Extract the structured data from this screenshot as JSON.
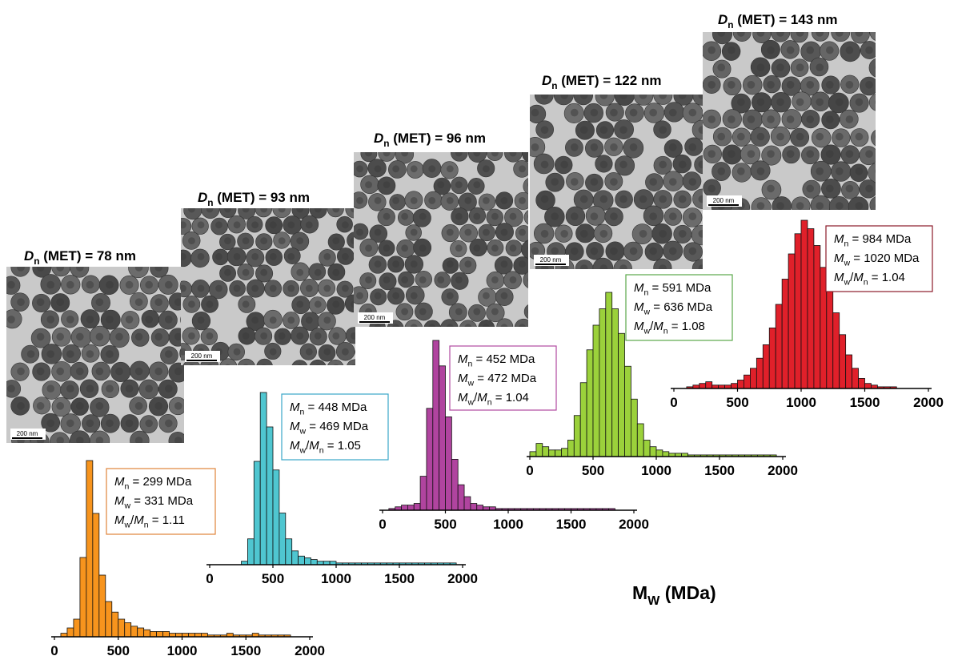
{
  "chart_data": [
    {
      "type": "histogram",
      "color": "#f7941d",
      "box_color": "#e0843a",
      "image_title": [
        {
          "t": "D",
          "s": "i"
        },
        {
          "t": "n",
          "s": "sub"
        },
        {
          "t": " (MET) = 78 nm"
        }
      ],
      "scale_bar": "200 nm",
      "stats": [
        [
          {
            "t": "M",
            "s": "i"
          },
          {
            "t": "n",
            "s": "sub"
          },
          {
            "t": " = 299 MDa"
          }
        ],
        [
          {
            "t": "M",
            "s": "i"
          },
          {
            "t": "w",
            "s": "sub"
          },
          {
            "t": " = 331 MDa"
          }
        ],
        [
          {
            "t": "M",
            "s": "i"
          },
          {
            "t": "w",
            "s": "sub"
          },
          {
            "t": "/"
          },
          {
            "t": "M",
            "s": "i"
          },
          {
            "t": "n",
            "s": "sub"
          },
          {
            "t": " = 1.11"
          }
        ]
      ],
      "bins": [
        0,
        50,
        100,
        150,
        200,
        250,
        300,
        350,
        400,
        450,
        500,
        550,
        600,
        650,
        700,
        750,
        800,
        850,
        900,
        950,
        1000,
        1050,
        1100,
        1150,
        1200,
        1250,
        1300,
        1350,
        1400,
        1450,
        1500,
        1550,
        1600,
        1650,
        1700,
        1750,
        1800,
        1850,
        1900,
        1950,
        2000
      ],
      "values": [
        0,
        2,
        5,
        10,
        45,
        100,
        70,
        35,
        20,
        14,
        10,
        8,
        6,
        5,
        4,
        3,
        3,
        3,
        2,
        2,
        2,
        2,
        2,
        2,
        1,
        1,
        1,
        2,
        1,
        1,
        1,
        2,
        1,
        1,
        1,
        1,
        1,
        0,
        0,
        0
      ],
      "xlim": [
        0,
        2000
      ],
      "ylim": [
        0,
        100
      ],
      "xticks": [
        0,
        500,
        1000,
        1500,
        2000
      ]
    },
    {
      "type": "histogram",
      "color": "#4fc6d0",
      "box_color": "#3aa6c8",
      "image_title": [
        {
          "t": "D",
          "s": "i"
        },
        {
          "t": "n",
          "s": "sub"
        },
        {
          "t": " (MET) = 93 nm"
        }
      ],
      "scale_bar": "200 nm",
      "stats": [
        [
          {
            "t": "M",
            "s": "i"
          },
          {
            "t": "n",
            "s": "sub"
          },
          {
            "t": " = 448 MDa"
          }
        ],
        [
          {
            "t": "M",
            "s": "i"
          },
          {
            "t": "w",
            "s": "sub"
          },
          {
            "t": " = 469 MDa"
          }
        ],
        [
          {
            "t": "M",
            "s": "i"
          },
          {
            "t": "w",
            "s": "sub"
          },
          {
            "t": "/"
          },
          {
            "t": "M",
            "s": "i"
          },
          {
            "t": "n",
            "s": "sub"
          },
          {
            "t": " = 1.05"
          }
        ]
      ],
      "bins": [
        0,
        50,
        100,
        150,
        200,
        250,
        300,
        350,
        400,
        450,
        500,
        550,
        600,
        650,
        700,
        750,
        800,
        850,
        900,
        950,
        1000,
        1050,
        1100,
        1150,
        1200,
        1250,
        1300,
        1350,
        1400,
        1450,
        1500,
        1550,
        1600,
        1650,
        1700,
        1750,
        1800,
        1850,
        1900,
        1950,
        2000
      ],
      "values": [
        0,
        0,
        0,
        0,
        0,
        2,
        15,
        60,
        100,
        80,
        55,
        30,
        15,
        8,
        5,
        4,
        3,
        2,
        2,
        2,
        1,
        1,
        1,
        1,
        1,
        1,
        1,
        1,
        1,
        1,
        1,
        1,
        1,
        1,
        1,
        1,
        1,
        1,
        1,
        0
      ],
      "xlim": [
        0,
        2000
      ],
      "ylim": [
        0,
        100
      ],
      "xticks": [
        0,
        500,
        1000,
        1500,
        2000
      ]
    },
    {
      "type": "histogram",
      "color": "#b0449f",
      "box_color": "#b04aa0",
      "image_title": [
        {
          "t": "D",
          "s": "i"
        },
        {
          "t": "n",
          "s": "sub"
        },
        {
          "t": " (MET) = 96 nm"
        }
      ],
      "scale_bar": "200 nm",
      "stats": [
        [
          {
            "t": "M",
            "s": "i"
          },
          {
            "t": "n",
            "s": "sub"
          },
          {
            "t": " = 452 MDa"
          }
        ],
        [
          {
            "t": "M",
            "s": "i"
          },
          {
            "t": "w",
            "s": "sub"
          },
          {
            "t": " = 472 MDa"
          }
        ],
        [
          {
            "t": "M",
            "s": "i"
          },
          {
            "t": "w",
            "s": "sub"
          },
          {
            "t": "/"
          },
          {
            "t": "M",
            "s": "i"
          },
          {
            "t": "n",
            "s": "sub"
          },
          {
            "t": " = 1.04"
          }
        ]
      ],
      "bins": [
        0,
        50,
        100,
        150,
        200,
        250,
        300,
        350,
        400,
        450,
        500,
        550,
        600,
        650,
        700,
        750,
        800,
        850,
        900,
        950,
        1000,
        1050,
        1100,
        1150,
        1200,
        1250,
        1300,
        1350,
        1400,
        1450,
        1500,
        1550,
        1600,
        1650,
        1700,
        1750,
        1800,
        1850,
        1900,
        1950,
        2000
      ],
      "values": [
        0,
        1,
        2,
        3,
        3,
        4,
        20,
        60,
        100,
        85,
        55,
        30,
        15,
        8,
        4,
        3,
        2,
        2,
        1,
        1,
        1,
        1,
        1,
        1,
        1,
        1,
        1,
        1,
        1,
        1,
        1,
        1,
        1,
        1,
        1,
        1,
        1,
        0,
        0,
        0
      ],
      "xlim": [
        0,
        2000
      ],
      "ylim": [
        0,
        100
      ],
      "xticks": [
        0,
        500,
        1000,
        1500,
        2000
      ]
    },
    {
      "type": "histogram",
      "color": "#9bd13b",
      "box_color": "#5aa84a",
      "image_title": [
        {
          "t": "D",
          "s": "i"
        },
        {
          "t": "n",
          "s": "sub"
        },
        {
          "t": " (MET) = 122 nm"
        }
      ],
      "scale_bar": "200 nm",
      "stats": [
        [
          {
            "t": "M",
            "s": "i"
          },
          {
            "t": "n",
            "s": "sub"
          },
          {
            "t": " = 591 MDa"
          }
        ],
        [
          {
            "t": "M",
            "s": "i"
          },
          {
            "t": "w",
            "s": "sub"
          },
          {
            "t": " = 636 MDa"
          }
        ],
        [
          {
            "t": "M",
            "s": "i"
          },
          {
            "t": "w",
            "s": "sub"
          },
          {
            "t": "/"
          },
          {
            "t": "M",
            "s": "i"
          },
          {
            "t": "n",
            "s": "sub"
          },
          {
            "t": " = 1.08"
          }
        ]
      ],
      "bins": [
        0,
        50,
        100,
        150,
        200,
        250,
        300,
        350,
        400,
        450,
        500,
        550,
        600,
        650,
        700,
        750,
        800,
        850,
        900,
        950,
        1000,
        1050,
        1100,
        1150,
        1200,
        1250,
        1300,
        1350,
        1400,
        1450,
        1500,
        1550,
        1600,
        1650,
        1700,
        1750,
        1800,
        1850,
        1900,
        1950,
        2000
      ],
      "values": [
        3,
        8,
        6,
        4,
        4,
        5,
        10,
        25,
        45,
        65,
        80,
        90,
        100,
        90,
        75,
        55,
        35,
        20,
        10,
        6,
        4,
        3,
        2,
        2,
        2,
        1,
        1,
        1,
        1,
        1,
        1,
        1,
        1,
        1,
        1,
        1,
        1,
        1,
        1,
        0
      ],
      "xlim": [
        0,
        2000
      ],
      "ylim": [
        0,
        100
      ],
      "xticks": [
        0,
        500,
        1000,
        1500,
        2000
      ]
    },
    {
      "type": "histogram",
      "color": "#e0202a",
      "box_color": "#8b1a2a",
      "image_title": [
        {
          "t": "D",
          "s": "i"
        },
        {
          "t": "n",
          "s": "sub"
        },
        {
          "t": " (MET) = 143 nm"
        }
      ],
      "scale_bar": "200 nm",
      "stats": [
        [
          {
            "t": "M",
            "s": "i"
          },
          {
            "t": "n",
            "s": "sub"
          },
          {
            "t": " = 984 MDa"
          }
        ],
        [
          {
            "t": "M",
            "s": "i"
          },
          {
            "t": "w",
            "s": "sub"
          },
          {
            "t": " = 1020 MDa"
          }
        ],
        [
          {
            "t": "M",
            "s": "i"
          },
          {
            "t": "w",
            "s": "sub"
          },
          {
            "t": "/"
          },
          {
            "t": "M",
            "s": "i"
          },
          {
            "t": "n",
            "s": "sub"
          },
          {
            "t": " = 1.04"
          }
        ]
      ],
      "bins": [
        0,
        50,
        100,
        150,
        200,
        250,
        300,
        350,
        400,
        450,
        500,
        550,
        600,
        650,
        700,
        750,
        800,
        850,
        900,
        950,
        1000,
        1050,
        1100,
        1150,
        1200,
        1250,
        1300,
        1350,
        1400,
        1450,
        1500,
        1550,
        1600,
        1650,
        1700,
        1750,
        1800,
        1850,
        1900,
        1950,
        2000
      ],
      "values": [
        0,
        0,
        1,
        2,
        3,
        4,
        2,
        2,
        2,
        3,
        5,
        8,
        12,
        18,
        26,
        36,
        50,
        65,
        80,
        92,
        100,
        95,
        85,
        72,
        58,
        45,
        32,
        20,
        12,
        6,
        3,
        2,
        1,
        1,
        1,
        0,
        0,
        0,
        0,
        0
      ],
      "xlim": [
        0,
        2000
      ],
      "ylim": [
        0,
        100
      ],
      "xticks": [
        0,
        500,
        1000,
        1500,
        2000
      ],
      "xlabel": [
        {
          "t": "M"
        },
        {
          "t": "W",
          "s": "sub"
        },
        {
          "t": " (MDa)"
        }
      ]
    }
  ]
}
